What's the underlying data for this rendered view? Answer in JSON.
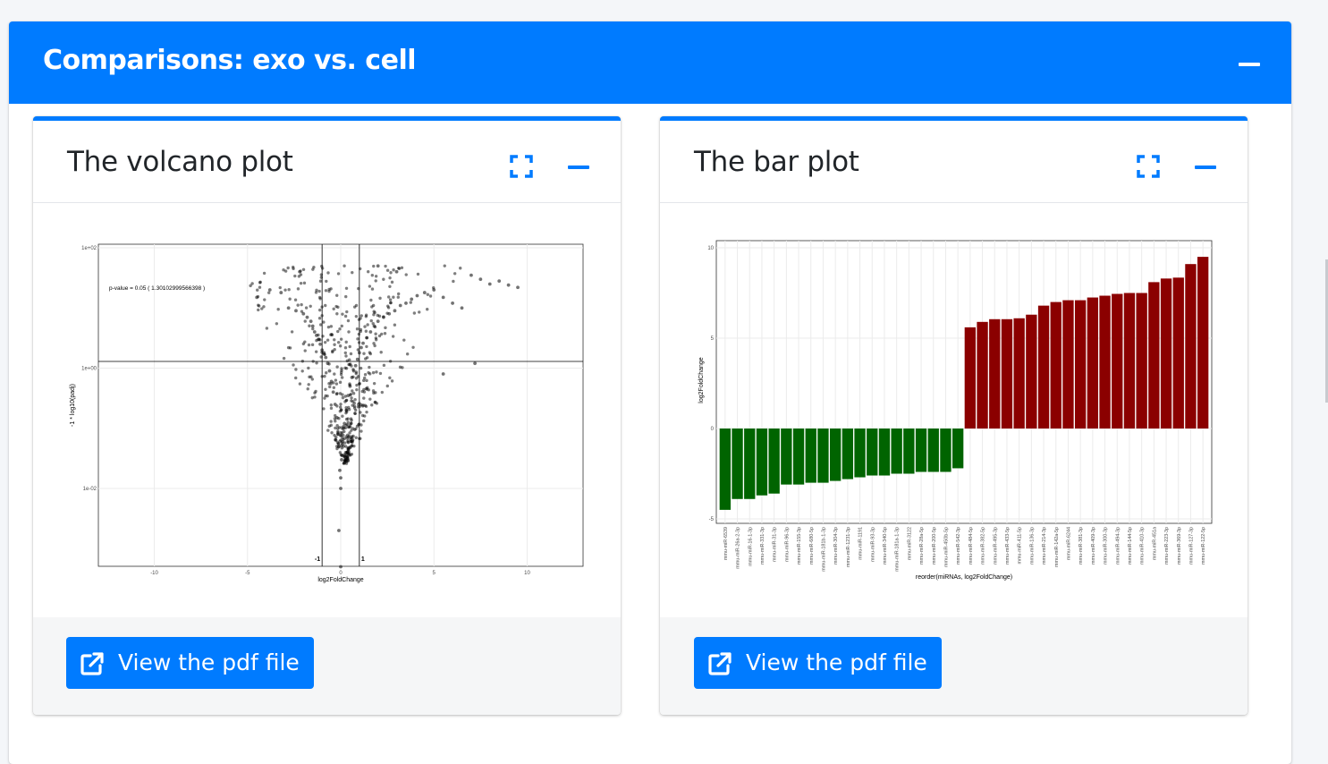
{
  "section": {
    "title": "Comparisons: exo vs. cell"
  },
  "volcano_card": {
    "title": "The volcano plot",
    "button_label": "View the pdf file"
  },
  "bar_card": {
    "title": "The bar plot",
    "button_label": "View the pdf file"
  },
  "icons": {
    "expand": "expand-icon",
    "collapse": "minus-icon",
    "external": "external-link-icon"
  },
  "colors": {
    "primary": "#007bff",
    "up": "#8b0000",
    "down": "#006400"
  },
  "chart_data": [
    {
      "type": "scatter",
      "title": "",
      "xlabel": "log2FoldChange",
      "ylabel": "-1 * log10(padj)",
      "xlim": [
        -13,
        13
      ],
      "y_ticks": [
        "1e+02",
        "1e+00",
        "1e-02"
      ],
      "x_ticks": [
        "-10",
        "-5",
        "0",
        "5",
        "10"
      ],
      "vlines": [
        -1,
        1
      ],
      "vline_labels": [
        "-1",
        "1"
      ],
      "hline_label": "p-value = 0.05 ( 1.30102999566398 )",
      "hline_value": 1.30103,
      "points": [
        {
          "x": -4.5,
          "y": 15
        },
        {
          "x": -3.8,
          "y": 20
        },
        {
          "x": -3.2,
          "y": 18
        },
        {
          "x": -2.2,
          "y": 40
        },
        {
          "x": -2.8,
          "y": 10
        },
        {
          "x": -2.4,
          "y": 9
        },
        {
          "x": -2.0,
          "y": 8
        },
        {
          "x": -1.8,
          "y": 7
        },
        {
          "x": -1.6,
          "y": 6
        },
        {
          "x": -1.5,
          "y": 5
        },
        {
          "x": -1.4,
          "y": 4
        },
        {
          "x": -1.3,
          "y": 3.5
        },
        {
          "x": -1.2,
          "y": 3
        },
        {
          "x": -1.1,
          "y": 2.5
        },
        {
          "x": -1.0,
          "y": 2
        },
        {
          "x": -0.9,
          "y": 1.8
        },
        {
          "x": -0.8,
          "y": 1.5
        },
        {
          "x": -0.7,
          "y": 1.2
        },
        {
          "x": -0.6,
          "y": 0.9
        },
        {
          "x": -0.5,
          "y": 0.6
        },
        {
          "x": -0.4,
          "y": 0.4
        },
        {
          "x": -0.3,
          "y": 0.25
        },
        {
          "x": -0.2,
          "y": 0.15
        },
        {
          "x": -0.15,
          "y": 0.08
        },
        {
          "x": -0.1,
          "y": 0.05
        },
        {
          "x": -0.05,
          "y": 0.02
        },
        {
          "x": 0.0,
          "y": 0.015
        },
        {
          "x": 0.0,
          "y": 0.01
        },
        {
          "x": 0.05,
          "y": 0.03
        },
        {
          "x": 0.1,
          "y": 0.06
        },
        {
          "x": 0.2,
          "y": 0.12
        },
        {
          "x": 0.3,
          "y": 0.2
        },
        {
          "x": 0.4,
          "y": 0.35
        },
        {
          "x": 0.5,
          "y": 0.5
        },
        {
          "x": 0.6,
          "y": 0.7
        },
        {
          "x": 0.7,
          "y": 0.9
        },
        {
          "x": 0.8,
          "y": 1.1
        },
        {
          "x": 0.9,
          "y": 1.4
        },
        {
          "x": 1.0,
          "y": 1.8
        },
        {
          "x": 1.1,
          "y": 2.2
        },
        {
          "x": 1.2,
          "y": 2.6
        },
        {
          "x": 1.4,
          "y": 3.2
        },
        {
          "x": 1.6,
          "y": 4
        },
        {
          "x": 1.8,
          "y": 5
        },
        {
          "x": 2.0,
          "y": 6
        },
        {
          "x": 2.3,
          "y": 7
        },
        {
          "x": 2.6,
          "y": 8
        },
        {
          "x": 2.9,
          "y": 9
        },
        {
          "x": 3.2,
          "y": 11
        },
        {
          "x": 3.5,
          "y": 12
        },
        {
          "x": 3.8,
          "y": 14
        },
        {
          "x": 4.1,
          "y": 16
        },
        {
          "x": 4.5,
          "y": 18
        },
        {
          "x": 5.0,
          "y": 20
        },
        {
          "x": 5.5,
          "y": 15
        },
        {
          "x": 6.0,
          "y": 12
        },
        {
          "x": 6.5,
          "y": 10
        },
        {
          "x": 7.0,
          "y": 35
        },
        {
          "x": 7.5,
          "y": 30
        },
        {
          "x": 8.0,
          "y": 25
        },
        {
          "x": 8.5,
          "y": 28
        },
        {
          "x": 9.0,
          "y": 24
        },
        {
          "x": 9.5,
          "y": 22
        },
        {
          "x": 5.5,
          "y": 0.8
        },
        {
          "x": 7.2,
          "y": 1.2
        },
        {
          "x": 2.0,
          "y": 50
        },
        {
          "x": 3.0,
          "y": 40
        },
        {
          "x": -0.1,
          "y": 0.002
        },
        {
          "x": 0.0,
          "y": 0.0005
        }
      ]
    },
    {
      "type": "bar",
      "title": "",
      "xlabel": "reorder(miRNAs, log2FoldChange)",
      "ylabel": "log2FoldChange",
      "ylim": [
        -5,
        10
      ],
      "y_ticks": [
        "-5",
        "0",
        "5",
        "10"
      ],
      "categories": [
        "mmu-miR-6539",
        "mmu-miR-26a-2-3p",
        "mmu-miR-16-1-3p",
        "mmu-miR-331-3p",
        "mmu-miR-31-3p",
        "mmu-miR-96-3p",
        "mmu-miR-155-3p",
        "mmu-miR-680-5p",
        "mmu-miR-181b-1-3p",
        "mmu-miR-304-3p",
        "mmu-miR-1231-3p",
        "mmu-miR-1191",
        "mmu-miR-93-3p",
        "mmu-miR-340-5p",
        "mmu-miR-181a-1-3p",
        "mmu-miR-3122",
        "mmu-miR-28a-5p",
        "mmu-miR-200-5p",
        "mmu-miR-450b-5p",
        "mmu-miR-542-3p",
        "mmu-miR-484-5p",
        "mmu-miR-382-5p",
        "mmu-miR-495-3p",
        "mmu-miR-433-5p",
        "mmu-miR-411-5p",
        "mmu-miR-136-3p",
        "mmu-miR-214-3p",
        "mmu-miR-142a-5p",
        "mmu-miR-6244",
        "mmu-miR-381-3p",
        "mmu-miR-409-3p",
        "mmu-miR-300-3p",
        "mmu-miR-494-3p",
        "mmu-miR-144-5p",
        "mmu-miR-410-3p",
        "mmu-miR-451a",
        "mmu-miR-223-3p",
        "mmu-miR-369-3p",
        "mmu-miR-127-3p",
        "mmu-miR-122-5p"
      ],
      "values": [
        -4.5,
        -3.9,
        -3.9,
        -3.7,
        -3.6,
        -3.1,
        -3.1,
        -3.0,
        -3.0,
        -2.9,
        -2.8,
        -2.7,
        -2.6,
        -2.6,
        -2.5,
        -2.5,
        -2.4,
        -2.4,
        -2.4,
        -2.2,
        5.6,
        5.9,
        6.05,
        6.05,
        6.1,
        6.3,
        6.8,
        7.0,
        7.1,
        7.1,
        7.25,
        7.35,
        7.45,
        7.5,
        7.5,
        8.1,
        8.3,
        8.35,
        9.1,
        9.5
      ]
    }
  ]
}
